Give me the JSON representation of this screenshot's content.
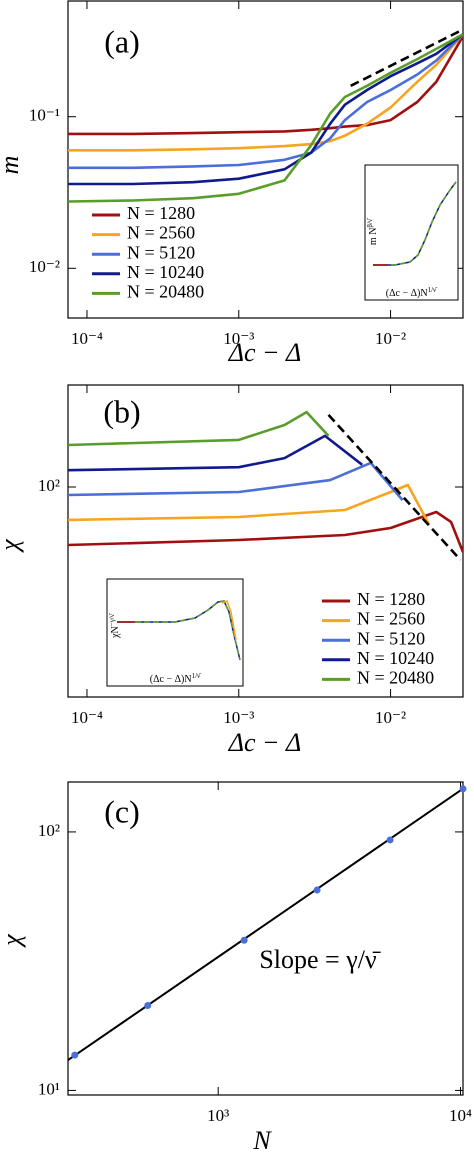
{
  "chart_data": [
    {
      "type": "line",
      "panel_label": "(a)",
      "xlabel": "Δc − Δ",
      "ylabel": "m",
      "xscale": "log",
      "yscale": "log",
      "xlim": [
        7.5e-05,
        0.03
      ],
      "ylim": [
        0.0047,
        0.58
      ],
      "xticks": [
        {
          "value": 0.0001,
          "label": "10⁻⁴"
        },
        {
          "value": 0.001,
          "label": "10⁻³"
        },
        {
          "value": 0.01,
          "label": "10⁻²"
        }
      ],
      "yticks": [
        {
          "value": 0.01,
          "label": "10⁻²"
        },
        {
          "value": 0.1,
          "label": "10⁻¹"
        }
      ],
      "legend": "center left",
      "x": [
        7.5e-05,
        0.0002,
        0.0005,
        0.001,
        0.002,
        0.003,
        0.004,
        0.005,
        0.007,
        0.01,
        0.015,
        0.02,
        0.03
      ],
      "series": [
        {
          "name": "N = 1280",
          "color": "#a01010",
          "values": [
            0.077,
            0.077,
            0.078,
            0.079,
            0.08,
            0.082,
            0.084,
            0.086,
            0.088,
            0.095,
            0.125,
            0.17,
            0.34
          ]
        },
        {
          "name": "N = 2560",
          "color": "#f7a520",
          "values": [
            0.06,
            0.06,
            0.061,
            0.062,
            0.064,
            0.066,
            0.069,
            0.075,
            0.09,
            0.115,
            0.17,
            0.22,
            0.35
          ]
        },
        {
          "name": "N = 5120",
          "color": "#4a6fd8",
          "values": [
            0.046,
            0.046,
            0.047,
            0.048,
            0.052,
            0.058,
            0.072,
            0.095,
            0.125,
            0.15,
            0.19,
            0.235,
            0.35
          ]
        },
        {
          "name": "N = 10240",
          "color": "#101a8c",
          "values": [
            0.036,
            0.036,
            0.037,
            0.039,
            0.045,
            0.058,
            0.09,
            0.12,
            0.15,
            0.185,
            0.225,
            0.26,
            0.35
          ]
        },
        {
          "name": "N = 20480",
          "color": "#5a9e2a",
          "values": [
            0.0276,
            0.028,
            0.029,
            0.031,
            0.038,
            0.065,
            0.105,
            0.135,
            0.16,
            0.195,
            0.24,
            0.28,
            0.35
          ]
        }
      ],
      "guide": {
        "x": [
          0.00546,
          0.029
        ],
        "values": [
          0.16,
          0.37
        ]
      },
      "inset": {
        "xlabel": [
          "(Δc − Δ)N",
          "1/ν̄"
        ],
        "ylabel": [
          "m N",
          "β/ν̄"
        ]
      }
    },
    {
      "type": "line",
      "panel_label": "(b)",
      "xlabel": "Δc − Δ",
      "ylabel": "χ",
      "xscale": "log",
      "yscale": "log",
      "xlim": [
        7.5e-05,
        0.03
      ],
      "ylim": [
        4.15,
        469
      ],
      "xticks": [
        {
          "value": 0.0001,
          "label": "10⁻⁴"
        },
        {
          "value": 0.001,
          "label": "10⁻³"
        },
        {
          "value": 0.01,
          "label": "10⁻²"
        }
      ],
      "yticks": [
        {
          "value": 100,
          "label": "10²"
        }
      ],
      "legend": "lower right",
      "series": [
        {
          "name": "N = 1280",
          "color": "#a01010",
          "x": [
            7.5e-05,
            0.001,
            0.005,
            0.01,
            0.02,
            0.025,
            0.03
          ],
          "values": [
            41.5,
            44.8,
            48.3,
            53.7,
            68.5,
            58.9,
            37.3
          ]
        },
        {
          "name": "N = 2560",
          "color": "#f7a520",
          "x": [
            7.5e-05,
            0.001,
            0.005,
            0.01,
            0.013,
            0.018
          ],
          "values": [
            60.7,
            63.5,
            70.6,
            92.7,
            103,
            56.3
          ]
        },
        {
          "name": "N = 5120",
          "color": "#4a6fd8",
          "x": [
            7.5e-05,
            0.001,
            0.004,
            0.0074,
            0.012
          ],
          "values": [
            88.6,
            92.7,
            111,
            144,
            82
          ]
        },
        {
          "name": "N = 10240",
          "color": "#101a8c",
          "x": [
            7.5e-05,
            0.001,
            0.002,
            0.0037,
            0.0065
          ],
          "values": [
            129,
            135,
            155,
            217,
            140
          ]
        },
        {
          "name": "N = 20480",
          "color": "#5a9e2a",
          "x": [
            7.5e-05,
            0.001,
            0.002,
            0.0028,
            0.0039
          ],
          "values": [
            189,
            204,
            256,
            311,
            217
          ]
        }
      ],
      "guide": {
        "x": [
          0.0039,
          0.0289
        ],
        "values": [
          298,
          33.1
        ]
      },
      "inset": {
        "xlabel": [
          "(Δc − Δ)N",
          "1/ν̄"
        ],
        "ylabel": [
          "χN",
          "−γ/ν̄"
        ]
      }
    },
    {
      "type": "scatter",
      "panel_label": "(c)",
      "xlabel": "N",
      "ylabel": "χ",
      "xscale": "log",
      "yscale": "log",
      "xlim": [
        240,
        10240
      ],
      "ylim": [
        9.6,
        156
      ],
      "xticks": [
        {
          "value": 1000,
          "label": "10³"
        },
        {
          "value": 10000,
          "label": "10⁴"
        }
      ],
      "yticks": [
        {
          "value": 10,
          "label": "10¹"
        },
        {
          "value": 100,
          "label": "10²"
        }
      ],
      "x": [
        256,
        512,
        1280,
        2560,
        5120,
        10240
      ],
      "values": [
        13.7,
        21.3,
        38.1,
        59.6,
        93.1,
        146.8
      ],
      "color": "#4a6fd8",
      "fit": {
        "x": [
          240,
          10240
        ],
        "values": [
          13.1,
          147
        ]
      },
      "annotation": "Slope = γ/ν̄"
    }
  ]
}
